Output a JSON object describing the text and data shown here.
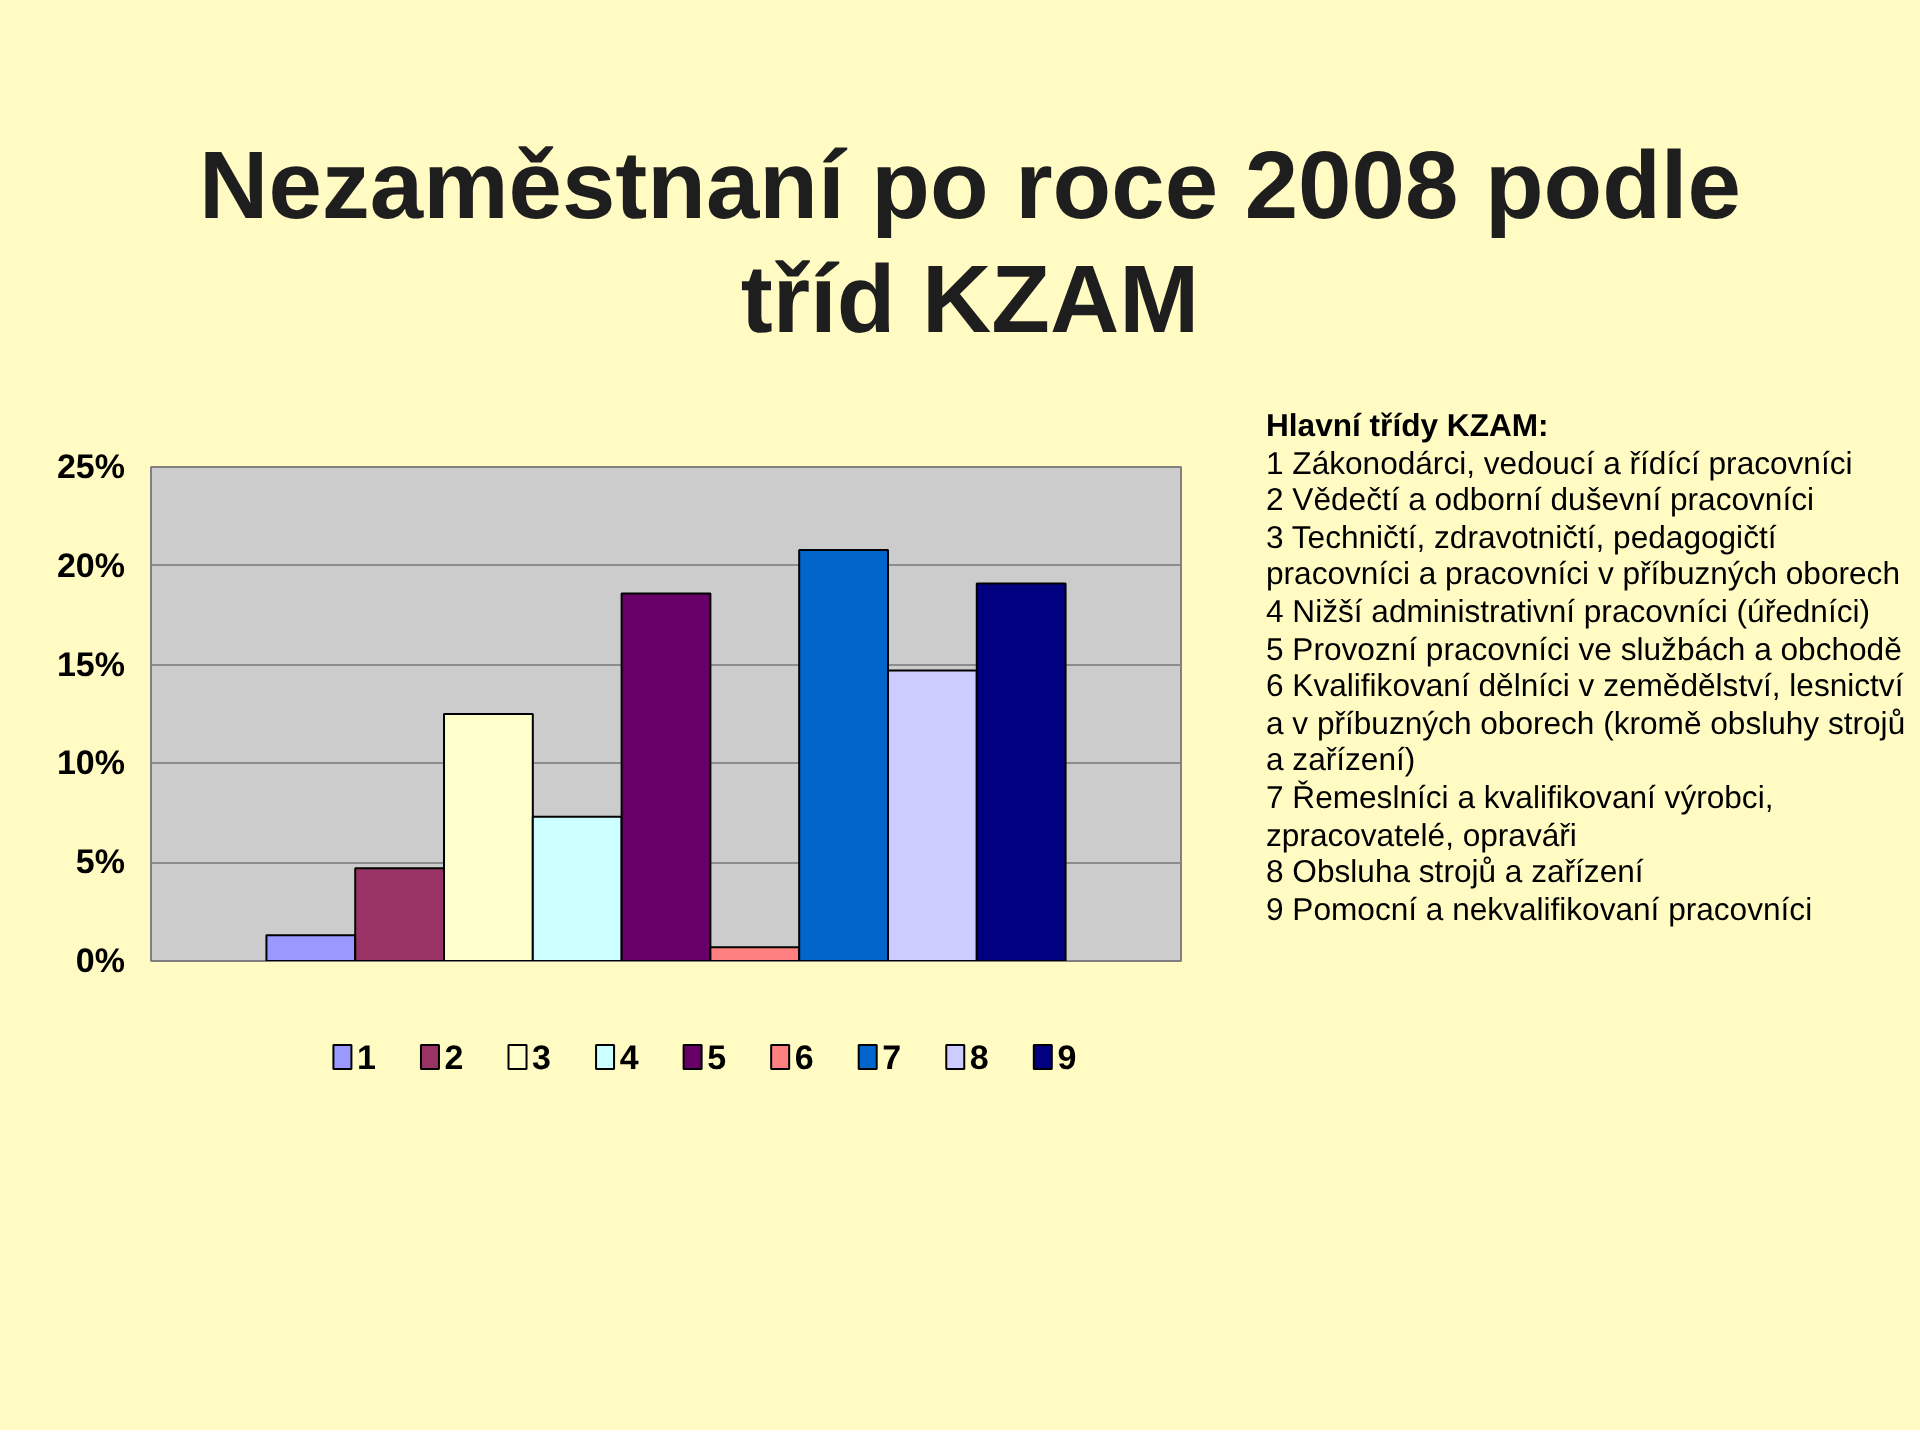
{
  "chart_data": {
    "type": "bar",
    "title": "Nezaměstnaní po roce 2008 podle tříd KZAM",
    "categories": [
      null
    ],
    "series": [
      {
        "name": "1",
        "color": "#9999ff",
        "values": [
          1.3
        ]
      },
      {
        "name": "2",
        "color": "#993366",
        "values": [
          4.7
        ]
      },
      {
        "name": "3",
        "color": "#ffffcc",
        "values": [
          12.5
        ]
      },
      {
        "name": "4",
        "color": "#ccffff",
        "values": [
          7.3
        ]
      },
      {
        "name": "5",
        "color": "#660066",
        "values": [
          18.6
        ]
      },
      {
        "name": "6",
        "color": "#ff8080",
        "values": [
          0.7
        ]
      },
      {
        "name": "7",
        "color": "#0066cc",
        "values": [
          20.8
        ]
      },
      {
        "name": "8",
        "color": "#ccccff",
        "values": [
          14.7
        ]
      },
      {
        "name": "9",
        "color": "#000080",
        "values": [
          19.1
        ]
      }
    ],
    "ylim": [
      0,
      25
    ],
    "yticks": [
      {
        "value": 0,
        "label": "0%"
      },
      {
        "value": 5,
        "label": "5%"
      },
      {
        "value": 10,
        "label": "10%"
      },
      {
        "value": 15,
        "label": "15%"
      },
      {
        "value": 20,
        "label": "20%"
      },
      {
        "value": 25,
        "label": "25%"
      }
    ],
    "grid": "y",
    "legend": "bottom",
    "tick_labels": "y",
    "annotations": [
      "Hlavní třídy KZAM:",
      "1 Zákonodárci, vedoucí a řídící pracovníci",
      "2 Vědečtí a odborní duševní pracovníci",
      "3 Techničtí, zdravotničtí, pedagogičtí pracovníci a pracovníci v příbuzných oborech",
      "4 Nižší administrativní pracovníci (úředníci)",
      "5 Provozní pracovníci ve službách a obchodě",
      "6 Kvalifikovaní dělníci v zemědělství, lesnictví a v příbuzných oborech (kromě obsluhy strojů a zařízení)",
      "7 Řemeslníci a kvalifikovaní výrobci, zpracovatelé, opraváři",
      "8 Obsluha strojů a zařízení",
      "9 Pomocní a nekvalifikovaní pracovníci"
    ]
  }
}
